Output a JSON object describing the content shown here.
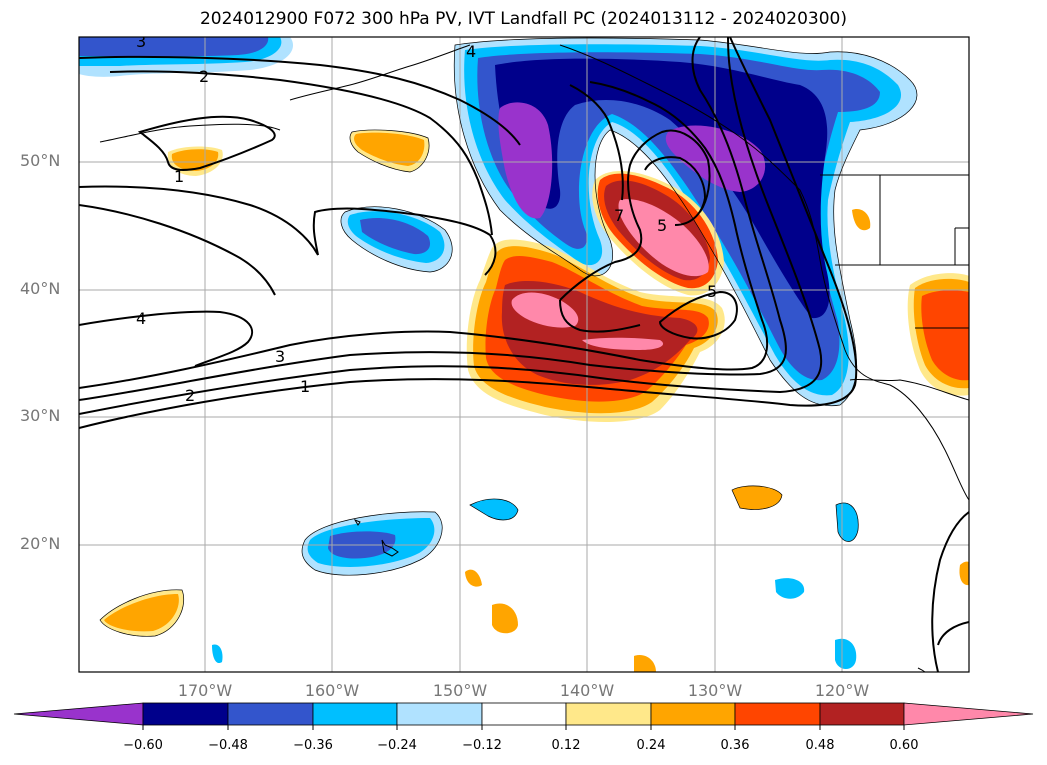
{
  "title": "2024012900 F072 300 hPa PV, IVT Landfall PC (2024013112 - 2024020300)",
  "map": {
    "lat_labels": [
      "50°N",
      "40°N",
      "30°N",
      "20°N"
    ],
    "lon_labels": [
      "170°W",
      "160°W",
      "150°W",
      "140°W",
      "130°W",
      "120°W"
    ],
    "contour_labels": [
      "3",
      "2",
      "1",
      "4",
      "3",
      "2",
      "1",
      "4",
      "7",
      "5",
      "5"
    ]
  },
  "colorbar": {
    "ticks": [
      "−0.60",
      "−0.48",
      "−0.36",
      "−0.24",
      "−0.12",
      "0.12",
      "0.24",
      "0.36",
      "0.48",
      "0.60"
    ],
    "colors": [
      "#9933cc",
      "#00008b",
      "#3355cc",
      "#00bfff",
      "#b0e2ff",
      "#ffffff",
      "#ffe88a",
      "#ffa500",
      "#ff4500",
      "#b22222",
      "#ff88aa"
    ]
  },
  "colors": {
    "grid": "#aaaaaa",
    "contour": "#000000",
    "axis_text": "#777777"
  }
}
